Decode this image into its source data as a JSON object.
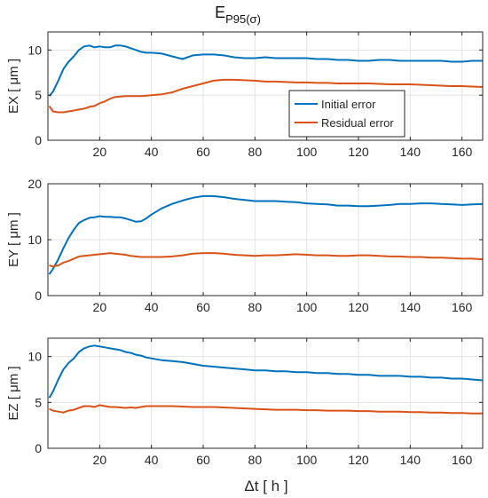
{
  "figure": {
    "title_main": "E",
    "title_sub": "P95(σ)",
    "xlabel": "Δt [ h ]"
  },
  "chart_data": [
    {
      "type": "line",
      "ylabel": "EX [ μm ]",
      "xlim": [
        0,
        168
      ],
      "ylim": [
        0,
        12
      ],
      "xticks": [
        20,
        40,
        60,
        80,
        100,
        120,
        140,
        160
      ],
      "yticks": [
        0,
        5,
        10
      ],
      "grid": true,
      "legend_position": "center-right",
      "series": [
        {
          "name": "Initial error",
          "color": "#0072BD",
          "x": [
            0.5,
            2,
            4,
            6,
            8,
            10,
            12,
            14,
            16,
            18,
            20,
            22,
            24,
            26,
            28,
            30,
            32,
            34,
            36,
            38,
            40,
            44,
            48,
            52,
            56,
            60,
            64,
            68,
            72,
            76,
            80,
            84,
            88,
            92,
            96,
            100,
            104,
            108,
            112,
            116,
            120,
            124,
            128,
            132,
            136,
            140,
            144,
            148,
            152,
            156,
            160,
            164,
            168
          ],
          "y": [
            4.9,
            5.4,
            6.6,
            7.9,
            8.7,
            9.3,
            10.0,
            10.4,
            10.5,
            10.3,
            10.4,
            10.3,
            10.3,
            10.5,
            10.5,
            10.4,
            10.2,
            10.0,
            9.8,
            9.7,
            9.7,
            9.6,
            9.3,
            9.0,
            9.4,
            9.5,
            9.5,
            9.4,
            9.2,
            9.1,
            9.1,
            9.2,
            9.1,
            9.1,
            9.1,
            9.1,
            9.0,
            9.0,
            8.9,
            8.9,
            8.8,
            8.8,
            8.9,
            8.9,
            8.8,
            8.8,
            8.8,
            8.8,
            8.8,
            8.7,
            8.7,
            8.8,
            8.8
          ]
        },
        {
          "name": "Residual error",
          "color": "#D95319",
          "x": [
            0.5,
            2,
            4,
            6,
            8,
            10,
            12,
            14,
            16,
            18,
            20,
            22,
            24,
            26,
            28,
            30,
            32,
            34,
            36,
            38,
            40,
            44,
            48,
            52,
            56,
            60,
            64,
            68,
            72,
            76,
            80,
            84,
            88,
            92,
            96,
            100,
            104,
            108,
            112,
            116,
            120,
            124,
            128,
            132,
            136,
            140,
            144,
            148,
            152,
            156,
            160,
            164,
            168
          ],
          "y": [
            3.8,
            3.2,
            3.1,
            3.1,
            3.2,
            3.3,
            3.4,
            3.5,
            3.7,
            3.8,
            4.1,
            4.3,
            4.6,
            4.8,
            4.85,
            4.9,
            4.9,
            4.9,
            4.9,
            4.95,
            5.0,
            5.1,
            5.3,
            5.7,
            6.0,
            6.3,
            6.6,
            6.7,
            6.7,
            6.65,
            6.6,
            6.5,
            6.5,
            6.45,
            6.4,
            6.4,
            6.35,
            6.35,
            6.3,
            6.3,
            6.3,
            6.3,
            6.25,
            6.2,
            6.2,
            6.2,
            6.15,
            6.1,
            6.05,
            6.0,
            6.0,
            5.95,
            5.9
          ]
        }
      ]
    },
    {
      "type": "line",
      "ylabel": "EY [ μm ]",
      "xlim": [
        0,
        168
      ],
      "ylim": [
        0,
        20
      ],
      "xticks": [
        20,
        40,
        60,
        80,
        100,
        120,
        140,
        160
      ],
      "yticks": [
        0,
        10,
        20
      ],
      "grid": true,
      "series": [
        {
          "name": "Initial error",
          "color": "#0072BD",
          "x": [
            0.5,
            2,
            4,
            6,
            8,
            10,
            12,
            14,
            16,
            18,
            20,
            22,
            24,
            26,
            28,
            30,
            32,
            34,
            36,
            38,
            40,
            44,
            48,
            52,
            56,
            60,
            64,
            68,
            72,
            76,
            80,
            84,
            88,
            92,
            96,
            100,
            104,
            108,
            112,
            116,
            120,
            124,
            128,
            132,
            136,
            140,
            144,
            148,
            152,
            156,
            160,
            164,
            168
          ],
          "y": [
            3.8,
            4.8,
            6.5,
            8.5,
            10.3,
            11.8,
            13.0,
            13.5,
            13.9,
            14.0,
            14.2,
            14.1,
            14.1,
            14.0,
            14.0,
            13.8,
            13.5,
            13.2,
            13.3,
            13.8,
            14.5,
            15.6,
            16.4,
            17.0,
            17.5,
            17.8,
            17.8,
            17.6,
            17.3,
            17.1,
            16.9,
            16.9,
            16.9,
            16.8,
            16.7,
            16.5,
            16.4,
            16.3,
            16.1,
            16.1,
            16.0,
            16.0,
            16.1,
            16.2,
            16.4,
            16.4,
            16.5,
            16.5,
            16.4,
            16.3,
            16.2,
            16.3,
            16.4
          ]
        },
        {
          "name": "Residual error",
          "color": "#D95319",
          "x": [
            0.5,
            2,
            4,
            6,
            8,
            10,
            12,
            14,
            16,
            18,
            20,
            22,
            24,
            26,
            28,
            30,
            32,
            34,
            36,
            38,
            40,
            44,
            48,
            52,
            56,
            60,
            64,
            68,
            72,
            76,
            80,
            84,
            88,
            92,
            96,
            100,
            104,
            108,
            112,
            116,
            120,
            124,
            128,
            132,
            136,
            140,
            144,
            148,
            152,
            156,
            160,
            164,
            168
          ],
          "y": [
            5.4,
            5.2,
            5.4,
            5.9,
            6.2,
            6.6,
            7.0,
            7.1,
            7.2,
            7.3,
            7.4,
            7.5,
            7.6,
            7.5,
            7.4,
            7.3,
            7.1,
            7.0,
            6.9,
            6.9,
            6.9,
            6.9,
            7.0,
            7.2,
            7.5,
            7.6,
            7.6,
            7.5,
            7.3,
            7.2,
            7.1,
            7.2,
            7.2,
            7.3,
            7.4,
            7.3,
            7.2,
            7.2,
            7.1,
            7.1,
            7.2,
            7.2,
            7.1,
            7.0,
            7.0,
            6.9,
            6.9,
            6.8,
            6.8,
            6.7,
            6.6,
            6.6,
            6.5
          ]
        }
      ]
    },
    {
      "type": "line",
      "ylabel": "EZ [ μm ]",
      "xlim": [
        0,
        168
      ],
      "ylim": [
        0,
        12
      ],
      "xticks": [
        20,
        40,
        60,
        80,
        100,
        120,
        140,
        160
      ],
      "yticks": [
        0,
        5,
        10
      ],
      "grid": true,
      "series": [
        {
          "name": "Initial error",
          "color": "#0072BD",
          "x": [
            0.5,
            2,
            4,
            6,
            8,
            10,
            12,
            14,
            16,
            18,
            20,
            22,
            24,
            26,
            28,
            30,
            32,
            34,
            36,
            38,
            40,
            44,
            48,
            52,
            56,
            60,
            64,
            68,
            72,
            76,
            80,
            84,
            88,
            92,
            96,
            100,
            104,
            108,
            112,
            116,
            120,
            124,
            128,
            132,
            136,
            140,
            144,
            148,
            152,
            156,
            160,
            164,
            168
          ],
          "y": [
            5.5,
            6.2,
            7.5,
            8.6,
            9.3,
            9.8,
            10.5,
            10.9,
            11.1,
            11.2,
            11.1,
            11.0,
            10.9,
            10.8,
            10.7,
            10.5,
            10.4,
            10.2,
            10.1,
            9.9,
            9.8,
            9.6,
            9.5,
            9.4,
            9.2,
            9.0,
            8.9,
            8.8,
            8.7,
            8.6,
            8.5,
            8.5,
            8.4,
            8.4,
            8.3,
            8.3,
            8.2,
            8.2,
            8.1,
            8.1,
            8.0,
            8.0,
            7.9,
            7.9,
            7.9,
            7.8,
            7.8,
            7.7,
            7.7,
            7.6,
            7.6,
            7.5,
            7.4
          ]
        },
        {
          "name": "Residual error",
          "color": "#D95319",
          "x": [
            0.5,
            2,
            4,
            6,
            8,
            10,
            12,
            14,
            16,
            18,
            20,
            22,
            24,
            26,
            28,
            30,
            32,
            34,
            36,
            38,
            40,
            44,
            48,
            52,
            56,
            60,
            64,
            68,
            72,
            76,
            80,
            84,
            88,
            92,
            96,
            100,
            104,
            108,
            112,
            116,
            120,
            124,
            128,
            132,
            136,
            140,
            144,
            148,
            152,
            156,
            160,
            164,
            168
          ],
          "y": [
            4.3,
            4.1,
            4.0,
            3.9,
            4.1,
            4.2,
            4.4,
            4.6,
            4.6,
            4.5,
            4.7,
            4.6,
            4.5,
            4.5,
            4.45,
            4.4,
            4.45,
            4.4,
            4.5,
            4.6,
            4.6,
            4.6,
            4.6,
            4.55,
            4.5,
            4.5,
            4.5,
            4.45,
            4.4,
            4.35,
            4.3,
            4.25,
            4.2,
            4.2,
            4.2,
            4.15,
            4.15,
            4.1,
            4.1,
            4.1,
            4.05,
            4.05,
            4.0,
            4.0,
            4.0,
            3.95,
            3.95,
            3.9,
            3.9,
            3.85,
            3.85,
            3.8,
            3.8
          ]
        }
      ]
    }
  ]
}
